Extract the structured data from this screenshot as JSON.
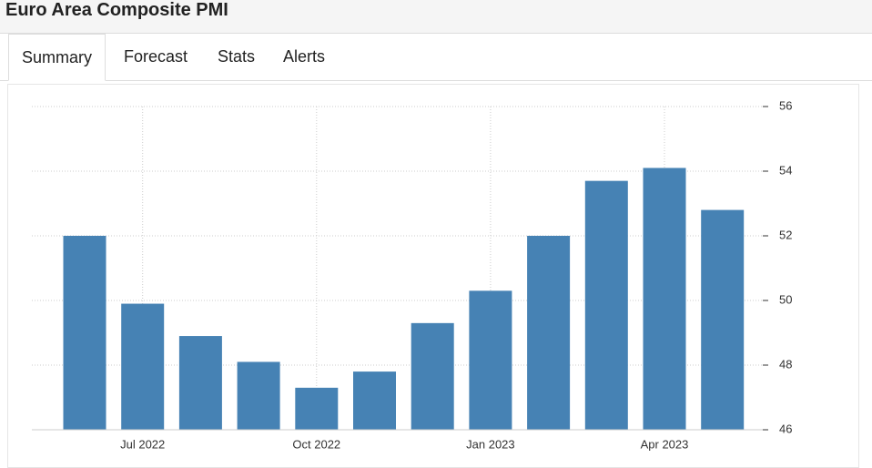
{
  "header": {
    "title": "Euro Area Composite PMI"
  },
  "tabs": [
    "Summary",
    "Forecast",
    "Stats",
    "Alerts"
  ],
  "chart_data": {
    "type": "bar",
    "categories": [
      null,
      "Jul 2022",
      null,
      null,
      "Oct 2022",
      null,
      null,
      "Jan 2023",
      null,
      null,
      "Apr 2023",
      null
    ],
    "values": [
      52.0,
      49.9,
      48.9,
      48.1,
      47.3,
      47.8,
      49.3,
      50.3,
      52.0,
      53.7,
      54.1,
      52.8
    ],
    "color": "#4682b4",
    "ylim": [
      46,
      56
    ],
    "yticks": [
      46,
      48,
      50,
      52,
      54,
      56
    ],
    "grid": true
  }
}
